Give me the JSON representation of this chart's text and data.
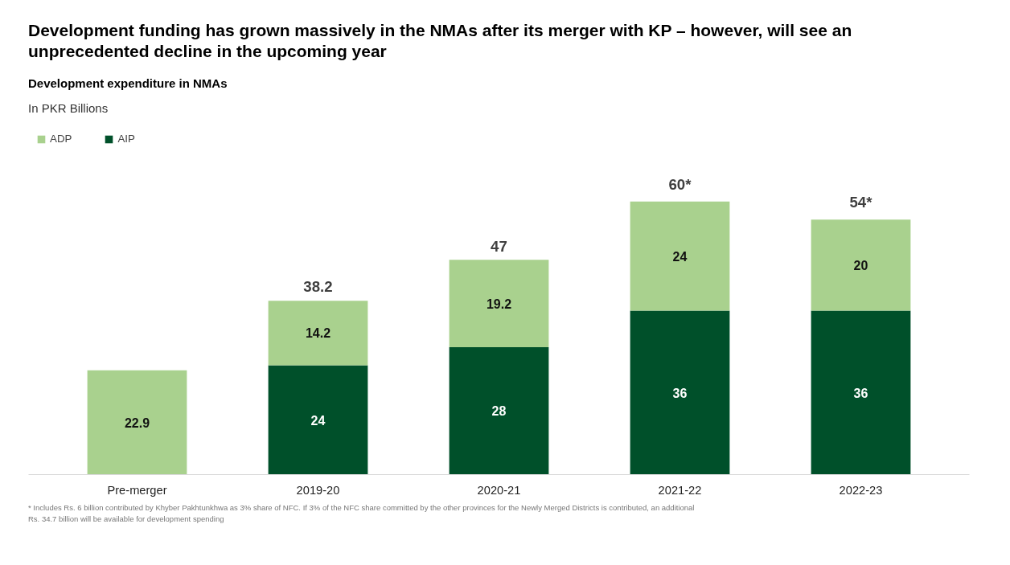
{
  "chart_data": {
    "type": "bar",
    "stacked": true,
    "title": "Development funding has grown massively in the NMAs after its merger with KP – however, will see an unprecedented decline in the upcoming year",
    "subtitle": "Development expenditure in NMAs",
    "categories": [
      "Pre-merger",
      "2019-20",
      "2020-21",
      "2021-22",
      "2022-23"
    ],
    "series": [
      {
        "name": "AIP",
        "color": "#00502a",
        "values": [
          null,
          24,
          28,
          36,
          36
        ]
      },
      {
        "name": "ADP",
        "color": "#a9d18e",
        "values": [
          22.9,
          14.2,
          19.2,
          24,
          20
        ]
      }
    ],
    "data_labels": true,
    "legend": "top left",
    "grid": false,
    "annotations": [
      "In PKR Billions",
      {
        "text": "38.2",
        "x": "2019-20",
        "y": 38.2
      },
      {
        "text": "47",
        "x": "2020-21",
        "y": 47
      },
      {
        "text": "60*",
        "x": "2021-22",
        "y": 60
      },
      {
        "text": "54*",
        "x": "2022-23",
        "y": 56
      },
      "* Includes Rs. 6 billion contributed by Khyber Pakhtunkhwa as 3% share of NFC. If 3% of the NFC share committed by the other provinces for the Newly Merged Districts is contributed, an additional Rs. 34.7 billion will be available for development spending"
    ]
  }
}
